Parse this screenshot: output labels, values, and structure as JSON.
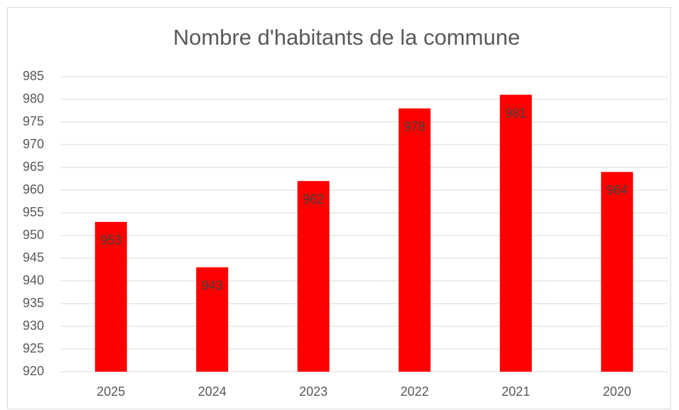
{
  "chart_data": {
    "type": "bar",
    "title": "Nombre d'habitants de la commune",
    "categories": [
      "2025",
      "2024",
      "2023",
      "2022",
      "2021",
      "2020"
    ],
    "values": [
      953,
      943,
      962,
      978,
      981,
      964
    ],
    "color": "#ff0000",
    "ylim": [
      920,
      985
    ],
    "yticks": [
      920,
      925,
      930,
      935,
      940,
      945,
      950,
      955,
      960,
      965,
      970,
      975,
      980,
      985
    ],
    "grid": true,
    "data_labels": true
  }
}
